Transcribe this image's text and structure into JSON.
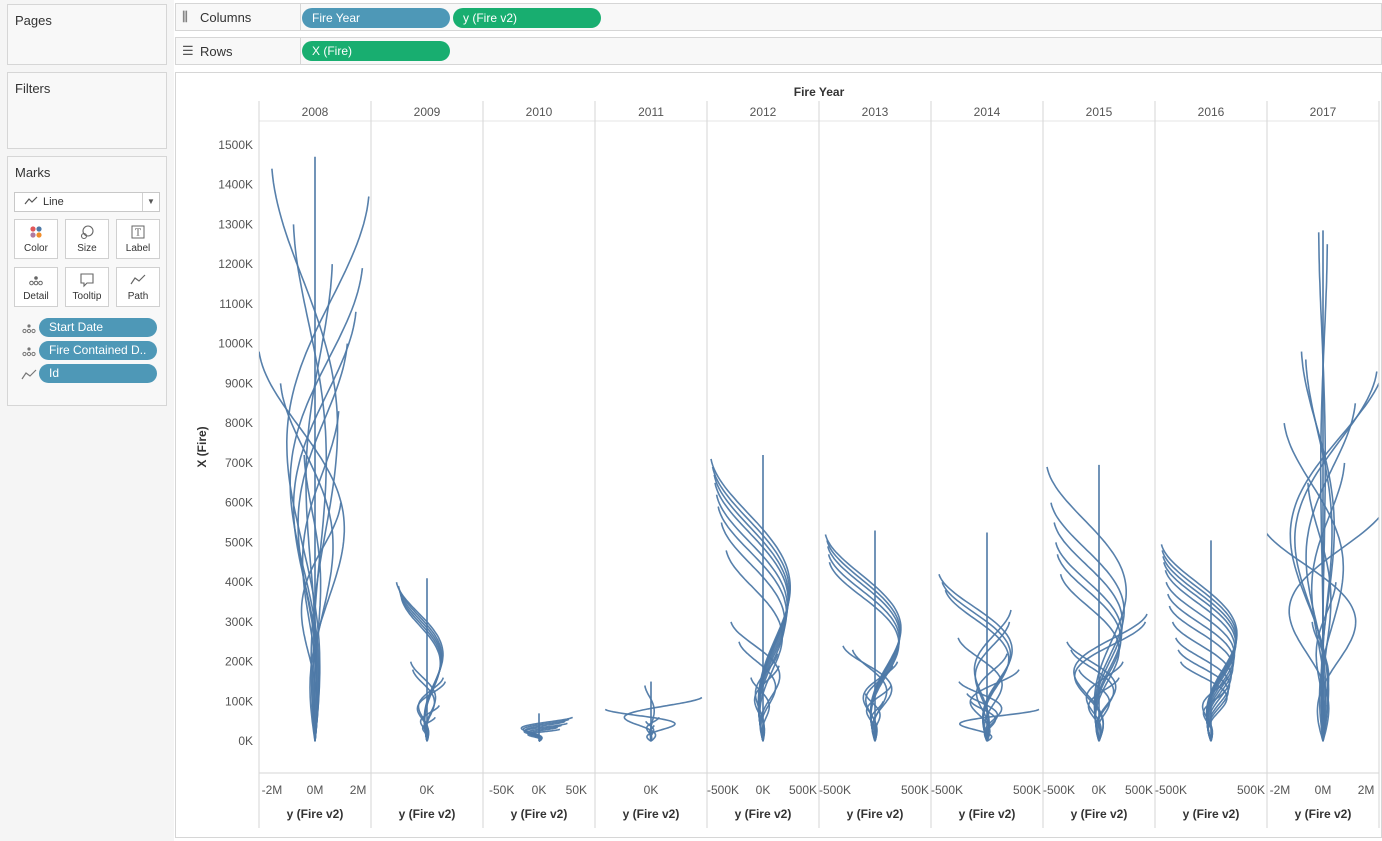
{
  "sidebar": {
    "pages": {
      "title": "Pages"
    },
    "filters": {
      "title": "Filters"
    },
    "marks": {
      "title": "Marks",
      "type": "Line",
      "buttons": [
        {
          "label": "Color",
          "icon": "color-dots-icon"
        },
        {
          "label": "Size",
          "icon": "size-shape-icon"
        },
        {
          "label": "Label",
          "icon": "label-text-icon"
        },
        {
          "label": "Detail",
          "icon": "detail-dots-icon"
        },
        {
          "label": "Tooltip",
          "icon": "tooltip-bubble-icon"
        },
        {
          "label": "Path",
          "icon": "path-line-icon"
        }
      ],
      "fields": [
        {
          "label": "Start Date",
          "icon": "detail-dots-icon"
        },
        {
          "label": "Fire Contained D..",
          "icon": "detail-dots-icon"
        },
        {
          "label": "Id",
          "icon": "path-line-icon"
        }
      ]
    }
  },
  "shelves": {
    "columns": {
      "label": "Columns",
      "pills": [
        {
          "label": "Fire Year",
          "color": "#4e98b7"
        },
        {
          "label": "y (Fire v2)",
          "color": "#18ae70"
        }
      ]
    },
    "rows": {
      "label": "Rows",
      "pills": [
        {
          "label": "X (Fire)",
          "color": "#18ae70"
        }
      ]
    }
  },
  "colors": {
    "line": "#4e79a7",
    "grid": "#e6e6e6",
    "divider": "#d6d6d6"
  },
  "chart_data": {
    "type": "line",
    "title": "Fire Year",
    "ylabel": "X (Fire)",
    "ylim": [
      -80000,
      1560000
    ],
    "yticks": [
      0,
      100000,
      200000,
      300000,
      400000,
      500000,
      600000,
      700000,
      800000,
      900000,
      1000000,
      1100000,
      1200000,
      1300000,
      1400000,
      1500000
    ],
    "ytick_labels": [
      "0K",
      "100K",
      "200K",
      "300K",
      "400K",
      "500K",
      "600K",
      "700K",
      "800K",
      "900K",
      "1000K",
      "1100K",
      "1200K",
      "1300K",
      "1400K",
      "1500K"
    ],
    "panels": [
      {
        "year": "2008",
        "xlim": [
          -2600000,
          2600000
        ],
        "xticks": [
          -2000000,
          0,
          2000000
        ],
        "xtick_labels": [
          "-2M",
          "0M",
          "2M"
        ],
        "xlabel": "y (Fire v2)",
        "vline_top": 1470000,
        "spirals": [
          [
            1440000,
            -2000000
          ],
          [
            1300000,
            -1000000
          ],
          [
            1200000,
            800000
          ],
          [
            1370000,
            2500000
          ],
          [
            1190000,
            2200000
          ],
          [
            1080000,
            1900000
          ],
          [
            980000,
            -2600000
          ],
          [
            900000,
            -1600000
          ],
          [
            830000,
            1100000
          ],
          [
            720000,
            -500000
          ],
          [
            1000000,
            1500000
          ],
          [
            600000,
            1200000
          ]
        ]
      },
      {
        "year": "2009",
        "xlim": [
          -550000,
          550000
        ],
        "xticks": [
          0
        ],
        "xtick_labels": [
          "0K"
        ],
        "xlabel": "y (Fire v2)",
        "vline_top": 410000,
        "spirals": [
          [
            400000,
            -300000
          ],
          [
            390000,
            -280000
          ],
          [
            380000,
            -270000
          ],
          [
            370000,
            -260000
          ],
          [
            360000,
            -250000
          ],
          [
            200000,
            -160000
          ],
          [
            180000,
            -140000
          ],
          [
            160000,
            160000
          ],
          [
            150000,
            180000
          ],
          [
            90000,
            120000
          ],
          [
            60000,
            80000
          ]
        ]
      },
      {
        "year": "2010",
        "xlim": [
          -75000,
          75000
        ],
        "xticks": [
          -50000,
          0,
          50000
        ],
        "xtick_labels": [
          "-50K",
          "0K",
          "50K"
        ],
        "xlabel": "y (Fire v2)",
        "vline_top": 70000,
        "spirals": [
          [
            60000,
            45000
          ],
          [
            55000,
            40000
          ],
          [
            50000,
            35000
          ],
          [
            45000,
            38000
          ],
          [
            40000,
            30000
          ],
          [
            35000,
            25000
          ],
          [
            30000,
            28000
          ]
        ]
      },
      {
        "year": "2011",
        "xlim": [
          -550000,
          550000
        ],
        "xticks": [
          0
        ],
        "xtick_labels": [
          "0K"
        ],
        "xlabel": "y (Fire v2)",
        "vline_top": 150000,
        "spirals": [
          [
            140000,
            -60000
          ],
          [
            110000,
            500000
          ],
          [
            80000,
            -450000
          ],
          [
            60000,
            80000
          ],
          [
            50000,
            -50000
          ],
          [
            40000,
            30000
          ]
        ]
      },
      {
        "year": "2012",
        "xlim": [
          -700000,
          700000
        ],
        "xticks": [
          -500000,
          0,
          500000
        ],
        "xtick_labels": [
          "-500K",
          "0K",
          "500K"
        ],
        "xlabel": "y (Fire v2)",
        "vline_top": 720000,
        "spirals": [
          [
            710000,
            -650000
          ],
          [
            690000,
            -630000
          ],
          [
            670000,
            -610000
          ],
          [
            650000,
            -600000
          ],
          [
            620000,
            -580000
          ],
          [
            590000,
            -560000
          ],
          [
            550000,
            -520000
          ],
          [
            480000,
            -460000
          ],
          [
            300000,
            -400000
          ],
          [
            250000,
            -300000
          ],
          [
            220000,
            180000
          ],
          [
            190000,
            200000
          ],
          [
            160000,
            -150000
          ]
        ]
      },
      {
        "year": "2013",
        "xlim": [
          -700000,
          700000
        ],
        "xticks": [
          -500000,
          500000
        ],
        "xtick_labels": [
          "-500K",
          "500K"
        ],
        "xlabel": "y (Fire v2)",
        "vline_top": 530000,
        "spirals": [
          [
            520000,
            -620000
          ],
          [
            505000,
            -600000
          ],
          [
            490000,
            -590000
          ],
          [
            470000,
            -580000
          ],
          [
            450000,
            -570000
          ],
          [
            240000,
            -400000
          ],
          [
            230000,
            -280000
          ],
          [
            200000,
            280000
          ],
          [
            190000,
            220000
          ],
          [
            140000,
            200000
          ],
          [
            120000,
            -120000
          ],
          [
            100000,
            100000
          ]
        ]
      },
      {
        "year": "2014",
        "xlim": [
          -700000,
          700000
        ],
        "xticks": [
          -500000,
          500000
        ],
        "xtick_labels": [
          "-500K",
          "500K"
        ],
        "xlabel": "y (Fire v2)",
        "vline_top": 525000,
        "spirals": [
          [
            420000,
            -600000
          ],
          [
            400000,
            -560000
          ],
          [
            380000,
            -520000
          ],
          [
            330000,
            300000
          ],
          [
            300000,
            280000
          ],
          [
            260000,
            -360000
          ],
          [
            220000,
            250000
          ],
          [
            180000,
            400000
          ],
          [
            150000,
            -350000
          ],
          [
            120000,
            -250000
          ],
          [
            100000,
            -200000
          ],
          [
            80000,
            650000
          ]
        ]
      },
      {
        "year": "2015",
        "xlim": [
          -700000,
          700000
        ],
        "xticks": [
          -500000,
          0,
          500000
        ],
        "xtick_labels": [
          "-500K",
          "0K",
          "500K"
        ],
        "xlabel": "y (Fire v2)",
        "vline_top": 695000,
        "spirals": [
          [
            690000,
            -650000
          ],
          [
            600000,
            -600000
          ],
          [
            550000,
            -560000
          ],
          [
            500000,
            -540000
          ],
          [
            470000,
            -520000
          ],
          [
            420000,
            -480000
          ],
          [
            320000,
            600000
          ],
          [
            300000,
            580000
          ],
          [
            250000,
            -400000
          ],
          [
            230000,
            -350000
          ],
          [
            200000,
            300000
          ],
          [
            180000,
            -250000
          ],
          [
            160000,
            250000
          ]
        ]
      },
      {
        "year": "2016",
        "xlim": [
          -700000,
          700000
        ],
        "xticks": [
          -500000,
          500000
        ],
        "xtick_labels": [
          "-500K",
          "500K"
        ],
        "xlabel": "y (Fire v2)",
        "vline_top": 505000,
        "spirals": [
          [
            495000,
            -620000
          ],
          [
            480000,
            -610000
          ],
          [
            465000,
            -600000
          ],
          [
            450000,
            -590000
          ],
          [
            430000,
            -570000
          ],
          [
            400000,
            -560000
          ],
          [
            370000,
            -540000
          ],
          [
            340000,
            -520000
          ],
          [
            300000,
            -480000
          ],
          [
            260000,
            -440000
          ],
          [
            230000,
            -410000
          ],
          [
            200000,
            -380000
          ],
          [
            160000,
            200000
          ],
          [
            130000,
            180000
          ]
        ]
      },
      {
        "year": "2017",
        "xlim": [
          -2600000,
          2600000
        ],
        "xticks": [
          -2000000,
          0,
          2000000
        ],
        "xtick_labels": [
          "-2M",
          "0M",
          "2M"
        ],
        "xlabel": "y (Fire v2)",
        "vline_top": 1285000,
        "spirals": [
          [
            1280000,
            -200000
          ],
          [
            1250000,
            200000
          ],
          [
            980000,
            -1000000
          ],
          [
            960000,
            -800000
          ],
          [
            950000,
            2900000
          ],
          [
            930000,
            2500000
          ],
          [
            850000,
            1500000
          ],
          [
            800000,
            -1800000
          ],
          [
            700000,
            1000000
          ],
          [
            650000,
            -700000
          ],
          [
            600000,
            3000000
          ],
          [
            550000,
            -2900000
          ],
          [
            400000,
            600000
          ],
          [
            300000,
            -500000
          ]
        ]
      }
    ]
  }
}
